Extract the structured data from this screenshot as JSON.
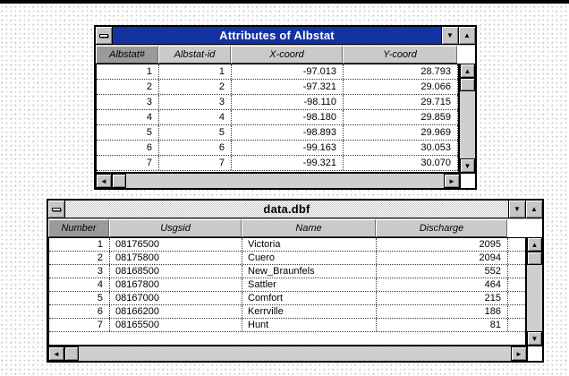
{
  "icons": {
    "titlebar_down": "▼",
    "titlebar_up": "▲",
    "scroll_up": "▲",
    "scroll_down": "▼",
    "scroll_left": "◄",
    "scroll_right": "►"
  },
  "colors": {
    "chrome": "#c0c0c0",
    "active-title-a": "#1b3aad",
    "active-title-b": "#0c2a96",
    "active-title-text": "#ffffff",
    "inactive-title-a": "#ffffff",
    "inactive-title-b": "#c6c6c6",
    "header-bg": "#cacaca",
    "header-selected-bg": "#9a9a9a",
    "track-a": "#dcdcdc",
    "track-b": "#c2c2c2"
  },
  "windows": [
    {
      "title": "Attributes of Albstat",
      "state": "active",
      "columns": [
        {
          "label": "Albstat#",
          "selected": true
        },
        {
          "label": "Albstat-id",
          "selected": false
        },
        {
          "label": "X-coord",
          "selected": false
        },
        {
          "label": "Y-coord",
          "selected": false
        }
      ],
      "rows": [
        [
          "1",
          "1",
          "-97.013",
          "28.793"
        ],
        [
          "2",
          "2",
          "-97.321",
          "29.066"
        ],
        [
          "3",
          "3",
          "-98.110",
          "29.715"
        ],
        [
          "4",
          "4",
          "-98.180",
          "29.859"
        ],
        [
          "5",
          "5",
          "-98.893",
          "29.969"
        ],
        [
          "6",
          "6",
          "-99.163",
          "30.053"
        ],
        [
          "7",
          "7",
          "-99.321",
          "30.070"
        ]
      ]
    },
    {
      "title": "data.dbf",
      "state": "inactive",
      "columns": [
        {
          "label": "Number",
          "selected": true
        },
        {
          "label": "Usgsid",
          "selected": false
        },
        {
          "label": "Name",
          "selected": false
        },
        {
          "label": "Discharge",
          "selected": false
        }
      ],
      "rows": [
        [
          "1",
          "08176500",
          "Victoria",
          "2095"
        ],
        [
          "2",
          "08175800",
          "Cuero",
          "2094"
        ],
        [
          "3",
          "08168500",
          "New_Braunfels",
          "552"
        ],
        [
          "4",
          "08167800",
          "Sattler",
          "464"
        ],
        [
          "5",
          "08167000",
          "Comfort",
          "215"
        ],
        [
          "6",
          "08166200",
          "Kerrville",
          "186"
        ],
        [
          "7",
          "08165500",
          "Hunt",
          "81"
        ]
      ]
    }
  ]
}
